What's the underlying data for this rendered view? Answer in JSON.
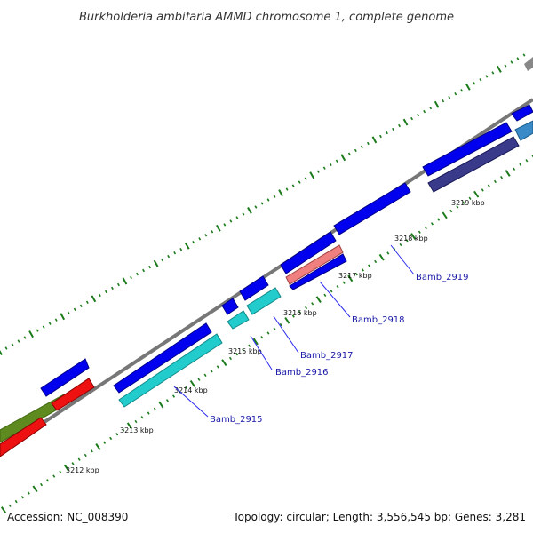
{
  "title": "Burkholderia ambifaria AMMD chromosome 1, complete genome",
  "footer": {
    "accession": "Accession: NC_008390",
    "summary": "Topology: circular; Length: 3,556,545 bp; Genes: 3,281"
  },
  "colors": {
    "forward_blue": "#0000ee",
    "forward_olive": "#5f8a20",
    "reverse_red": "#ee1111",
    "reverse_cyan": "#22cccc",
    "reverse_salmon": "#f08080",
    "reverse_slate": "#3a3a8a",
    "reverse_steel": "#3a8ac8",
    "backbone": "#888888",
    "tick": "#1a7a1a",
    "label_line": "#2a2aee"
  },
  "scale_labels": [
    "3212 kbp",
    "3213 kbp",
    "3214 kbp",
    "3215 kbp",
    "3216 kbp",
    "3217 kbp",
    "3218 kbp",
    "3219 kbp"
  ],
  "gene_labels": [
    "Bamb_2915",
    "Bamb_2916",
    "Bamb_2917",
    "Bamb_2918",
    "Bamb_2919"
  ]
}
